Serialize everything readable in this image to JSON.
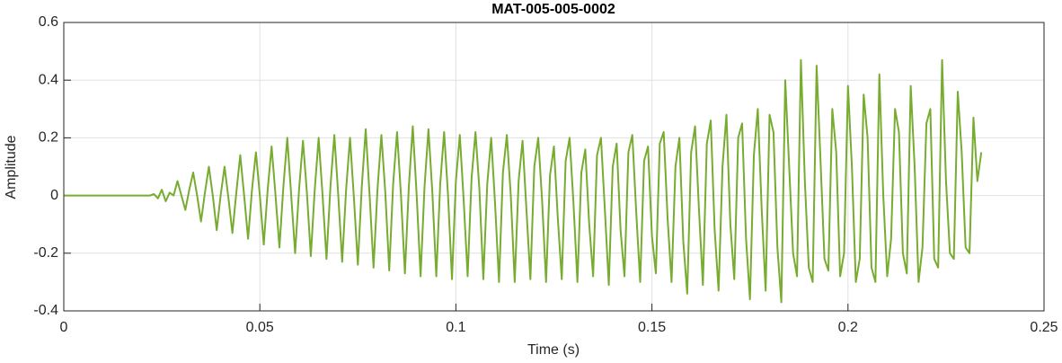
{
  "chart_data": {
    "type": "line",
    "title": "MAT-005-005-0002",
    "xlabel": "Time (s)",
    "ylabel": "Amplitude",
    "xlim": [
      0,
      0.25
    ],
    "xticks": [
      0,
      0.05,
      0.1,
      0.15,
      0.2,
      0.25
    ],
    "ylim": [
      -0.4,
      0.6
    ],
    "yticks": [
      -0.4,
      -0.2,
      0,
      0.2,
      0.4,
      0.6
    ],
    "grid": true,
    "x": [
      0,
      0.022,
      0.023,
      0.024,
      0.025,
      0.026,
      0.027,
      0.028,
      0.029,
      0.03,
      0.031,
      0.032,
      0.033,
      0.034,
      0.035,
      0.036,
      0.037,
      0.038,
      0.039,
      0.04,
      0.041,
      0.042,
      0.043,
      0.044,
      0.045,
      0.046,
      0.047,
      0.048,
      0.049,
      0.05,
      0.051,
      0.052,
      0.053,
      0.054,
      0.055,
      0.056,
      0.057,
      0.058,
      0.059,
      0.06,
      0.061,
      0.062,
      0.063,
      0.064,
      0.065,
      0.066,
      0.067,
      0.068,
      0.069,
      0.07,
      0.071,
      0.072,
      0.073,
      0.074,
      0.075,
      0.076,
      0.077,
      0.078,
      0.079,
      0.08,
      0.081,
      0.082,
      0.083,
      0.084,
      0.085,
      0.086,
      0.087,
      0.088,
      0.089,
      0.09,
      0.091,
      0.092,
      0.093,
      0.094,
      0.095,
      0.096,
      0.097,
      0.098,
      0.099,
      0.1,
      0.101,
      0.102,
      0.103,
      0.104,
      0.105,
      0.106,
      0.107,
      0.108,
      0.109,
      0.11,
      0.111,
      0.112,
      0.113,
      0.114,
      0.115,
      0.116,
      0.117,
      0.118,
      0.119,
      0.12,
      0.121,
      0.122,
      0.123,
      0.124,
      0.125,
      0.126,
      0.127,
      0.128,
      0.129,
      0.13,
      0.131,
      0.132,
      0.133,
      0.134,
      0.135,
      0.136,
      0.137,
      0.138,
      0.139,
      0.14,
      0.141,
      0.142,
      0.143,
      0.144,
      0.145,
      0.146,
      0.147,
      0.148,
      0.149,
      0.15,
      0.151,
      0.152,
      0.153,
      0.154,
      0.155,
      0.156,
      0.157,
      0.158,
      0.159,
      0.16,
      0.161,
      0.162,
      0.163,
      0.164,
      0.165,
      0.166,
      0.167,
      0.168,
      0.169,
      0.17,
      0.171,
      0.172,
      0.173,
      0.174,
      0.175,
      0.176,
      0.177,
      0.178,
      0.179,
      0.18,
      0.181,
      0.182,
      0.183,
      0.184,
      0.185,
      0.186,
      0.187,
      0.188,
      0.189,
      0.19,
      0.191,
      0.192,
      0.193,
      0.194,
      0.195,
      0.196,
      0.197,
      0.198,
      0.199,
      0.2,
      0.201,
      0.202,
      0.203,
      0.204,
      0.205,
      0.206,
      0.207,
      0.208,
      0.209,
      0.21,
      0.211,
      0.212,
      0.213,
      0.214,
      0.215,
      0.216,
      0.217,
      0.218,
      0.219,
      0.22,
      0.221,
      0.222,
      0.223,
      0.224,
      0.225,
      0.226,
      0.227,
      0.228,
      0.229,
      0.23,
      0.231,
      0.232,
      0.233,
      0.234
    ],
    "series": [
      {
        "color": "#77ac30",
        "values": [
          0,
          0,
          0.005,
          -0.01,
          0.02,
          -0.02,
          0.01,
          0.0,
          0.05,
          0.0,
          -0.05,
          0.02,
          0.08,
          0.0,
          -0.09,
          0.01,
          0.1,
          0.0,
          -0.12,
          0.0,
          0.1,
          -0.01,
          -0.13,
          0.01,
          0.14,
          0.0,
          -0.15,
          0.02,
          0.15,
          0.0,
          -0.17,
          0.02,
          0.17,
          0.0,
          -0.18,
          0.03,
          0.2,
          0.0,
          -0.2,
          0.02,
          0.19,
          0.01,
          -0.21,
          0.02,
          0.2,
          0.0,
          -0.22,
          0.03,
          0.21,
          0.0,
          -0.23,
          0.02,
          0.2,
          -0.01,
          -0.24,
          0.03,
          0.23,
          0.0,
          -0.25,
          0.02,
          0.21,
          0.01,
          -0.26,
          0.04,
          0.22,
          0.0,
          -0.27,
          0.03,
          0.24,
          0.0,
          -0.28,
          0.03,
          0.23,
          0.01,
          -0.28,
          0.04,
          0.22,
          0.0,
          -0.29,
          0.05,
          0.21,
          -0.02,
          -0.28,
          0.06,
          0.22,
          0.02,
          -0.29,
          0.04,
          0.2,
          -0.03,
          -0.3,
          0.08,
          0.21,
          0.0,
          -0.3,
          0.05,
          0.19,
          -0.05,
          -0.29,
          0.1,
          0.2,
          -0.02,
          -0.3,
          0.07,
          0.17,
          -0.08,
          -0.29,
          0.12,
          0.2,
          -0.03,
          -0.3,
          0.08,
          0.16,
          -0.1,
          -0.28,
          0.14,
          0.2,
          -0.05,
          -0.31,
          0.1,
          0.18,
          -0.12,
          -0.28,
          0.15,
          0.21,
          -0.06,
          -0.3,
          0.12,
          0.17,
          -0.14,
          -0.27,
          0.18,
          0.22,
          -0.08,
          -0.3,
          0.1,
          0.2,
          -0.16,
          -0.34,
          0.15,
          0.24,
          -0.05,
          -0.31,
          0.18,
          0.26,
          -0.12,
          -0.33,
          0.1,
          0.28,
          -0.1,
          -0.29,
          0.2,
          0.25,
          -0.15,
          -0.36,
          0.14,
          0.3,
          -0.05,
          -0.33,
          0.28,
          0.22,
          -0.18,
          -0.37,
          0.4,
          0.1,
          -0.2,
          -0.28,
          0.47,
          0.05,
          -0.25,
          -0.3,
          0.45,
          0.12,
          -0.22,
          -0.26,
          0.3,
          0.15,
          -0.28,
          -0.2,
          0.38,
          0.1,
          -0.3,
          -0.22,
          0.35,
          0.2,
          -0.25,
          -0.3,
          0.42,
          0.0,
          -0.28,
          -0.15,
          0.3,
          0.22,
          -0.2,
          -0.27,
          0.38,
          0.1,
          -0.3,
          -0.18,
          0.25,
          0.3,
          -0.22,
          -0.25,
          0.47,
          0.05,
          -0.2,
          -0.22,
          0.36,
          0.15,
          -0.18,
          -0.2,
          0.27,
          0.05,
          0.15
        ]
      }
    ]
  }
}
